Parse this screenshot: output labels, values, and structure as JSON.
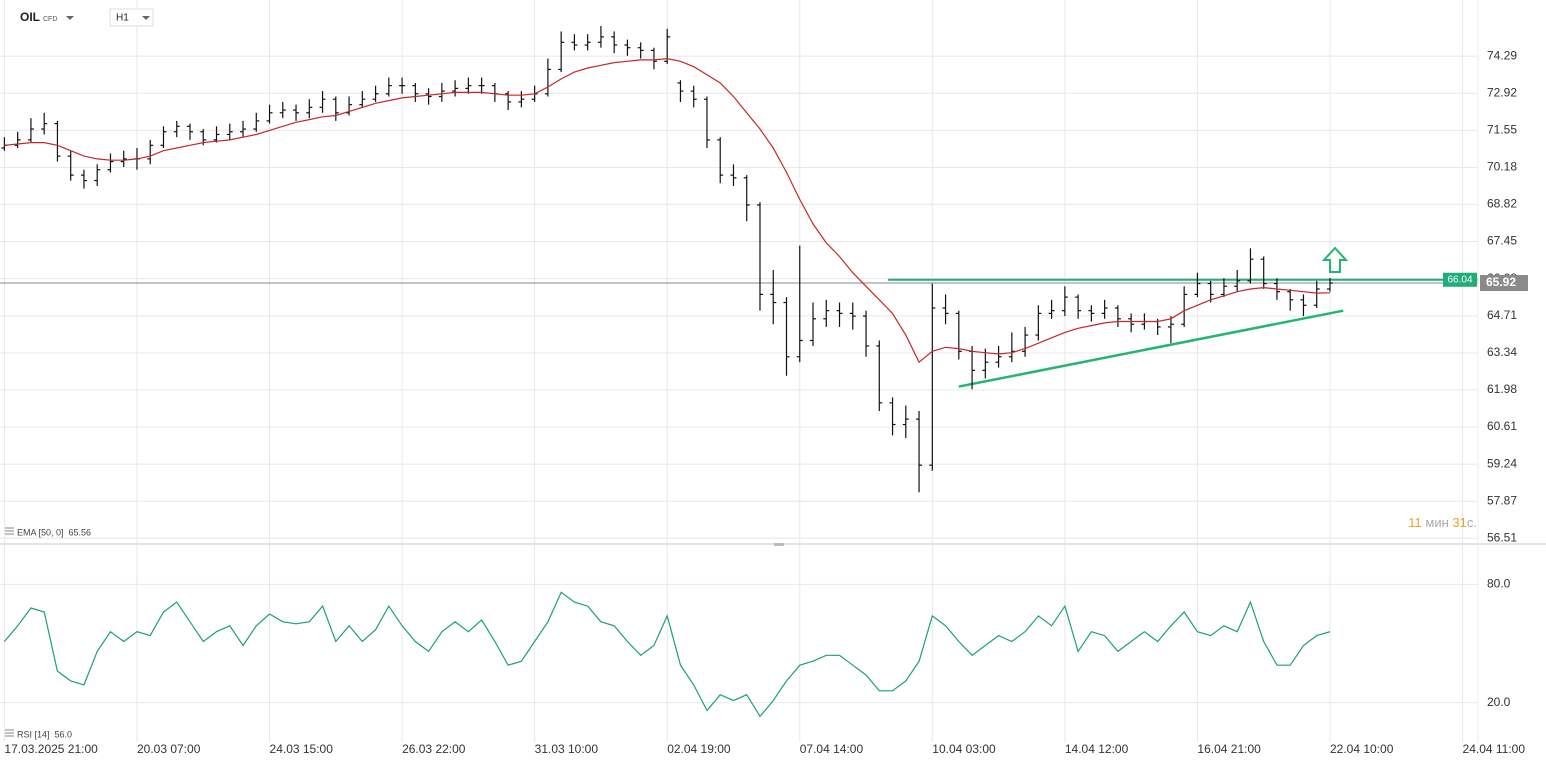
{
  "header": {
    "symbol": "OIL",
    "symbol_type": "CFD",
    "timeframe": "H1"
  },
  "countdown": {
    "minutes": "11",
    "minutes_unit": "мин",
    "seconds": "31",
    "seconds_unit": "с."
  },
  "chart_data": [
    {
      "type": "ohlc",
      "color": "#111111",
      "xlim": [
        -2,
        667
      ],
      "ylim": [
        56.33,
        76.36
      ],
      "yticks": [
        56.51,
        57.87,
        59.24,
        60.61,
        61.98,
        63.34,
        64.71,
        66.08,
        67.45,
        68.82,
        70.18,
        71.55,
        72.92,
        74.29
      ],
      "grid": true,
      "x": [
        0,
        6,
        12,
        18,
        24,
        30,
        36,
        42,
        48,
        54,
        60,
        66,
        72,
        78,
        84,
        90,
        96,
        102,
        108,
        114,
        120,
        126,
        132,
        138,
        144,
        150,
        156,
        162,
        168,
        174,
        180,
        186,
        192,
        198,
        204,
        210,
        216,
        222,
        228,
        234,
        240,
        246,
        252,
        258,
        264,
        270,
        276,
        282,
        288,
        294,
        300,
        306,
        312,
        318,
        324,
        330,
        336,
        342,
        348,
        354,
        360,
        366,
        372,
        378,
        384,
        390,
        396,
        402,
        408,
        414,
        420,
        426,
        432,
        438,
        444,
        450,
        456,
        462,
        468,
        474,
        480,
        486,
        492,
        498,
        504,
        510,
        516,
        522,
        528,
        534,
        540,
        546,
        552,
        558,
        564,
        570,
        576,
        582,
        588,
        594,
        600
      ],
      "open": [
        70.9,
        71.0,
        71.2,
        71.6,
        71.8,
        70.6,
        69.9,
        69.7,
        70.1,
        70.4,
        70.5,
        70.5,
        71.0,
        71.5,
        71.7,
        71.5,
        71.2,
        71.4,
        71.5,
        71.6,
        71.9,
        72.2,
        72.3,
        72.2,
        72.4,
        72.7,
        72.2,
        72.5,
        72.7,
        72.9,
        73.2,
        73.2,
        72.9,
        72.8,
        73.0,
        73.1,
        73.2,
        73.2,
        72.9,
        72.6,
        72.7,
        72.9,
        73.8,
        74.8,
        74.7,
        74.8,
        75.0,
        74.7,
        74.6,
        74.5,
        74.1,
        73.3,
        73.0,
        72.7,
        71.2,
        69.9,
        69.8,
        68.8,
        65.5,
        65.2,
        63.2,
        63.8,
        64.6,
        64.9,
        64.8,
        64.7,
        63.6,
        61.5,
        60.7,
        60.9,
        59.2,
        65.0,
        64.8,
        63.4,
        62.7,
        63.0,
        63.2,
        63.4,
        64.0,
        64.8,
        64.9,
        65.4,
        64.9,
        64.8,
        65.0,
        64.6,
        64.4,
        64.5,
        64.3,
        64.4,
        65.5,
        65.9,
        65.5,
        65.8,
        66.0,
        66.8,
        65.9,
        65.6,
        65.3,
        65.1,
        65.7
      ],
      "high": [
        71.3,
        71.5,
        72.0,
        72.2,
        71.9,
        70.8,
        70.1,
        70.3,
        70.7,
        70.8,
        70.9,
        71.2,
        71.7,
        71.9,
        71.8,
        71.6,
        71.7,
        71.8,
        71.9,
        72.2,
        72.5,
        72.6,
        72.5,
        72.7,
        73.0,
        72.8,
        72.8,
        73.0,
        73.2,
        73.5,
        73.5,
        73.3,
        73.1,
        73.3,
        73.4,
        73.5,
        73.5,
        73.3,
        73.0,
        73.0,
        73.2,
        74.2,
        75.2,
        75.1,
        75.1,
        75.4,
        75.2,
        74.9,
        74.8,
        74.6,
        75.3,
        73.4,
        73.2,
        72.8,
        71.3,
        70.3,
        69.9,
        68.9,
        66.4,
        65.4,
        67.3,
        65.2,
        65.3,
        65.2,
        65.2,
        64.9,
        63.8,
        61.7,
        61.4,
        61.2,
        65.9,
        65.5,
        64.9,
        63.6,
        63.5,
        63.6,
        64.1,
        64.3,
        65.1,
        65.3,
        65.8,
        65.5,
        65.1,
        65.3,
        65.1,
        64.8,
        64.8,
        64.6,
        64.7,
        65.8,
        66.3,
        66.0,
        66.1,
        66.4,
        67.2,
        66.9,
        66.1,
        65.7,
        65.5,
        66.0,
        66.1
      ],
      "low": [
        70.8,
        70.9,
        71.1,
        71.4,
        70.4,
        69.7,
        69.4,
        69.5,
        70.0,
        70.2,
        70.1,
        70.3,
        70.9,
        71.3,
        71.2,
        71.0,
        71.1,
        71.2,
        71.3,
        71.5,
        71.8,
        72.0,
        71.9,
        72.0,
        72.2,
        71.9,
        72.1,
        72.4,
        72.6,
        72.8,
        72.9,
        72.6,
        72.5,
        72.6,
        72.8,
        72.9,
        72.9,
        72.6,
        72.3,
        72.4,
        72.6,
        72.8,
        73.7,
        74.5,
        74.5,
        74.6,
        74.4,
        74.3,
        74.2,
        73.8,
        74.0,
        72.6,
        72.4,
        70.9,
        69.6,
        69.5,
        68.2,
        64.9,
        64.4,
        62.5,
        63.0,
        63.6,
        64.3,
        64.3,
        64.2,
        63.2,
        61.2,
        60.3,
        60.2,
        58.2,
        59.0,
        64.4,
        63.1,
        62.0,
        62.4,
        62.8,
        63.0,
        63.2,
        63.8,
        64.6,
        64.7,
        64.6,
        64.5,
        64.6,
        64.3,
        64.1,
        64.2,
        64.0,
        63.7,
        64.3,
        65.4,
        65.2,
        65.4,
        65.6,
        65.9,
        65.7,
        65.3,
        64.9,
        64.7,
        65.0,
        65.6
      ],
      "close": [
        71.0,
        71.2,
        71.6,
        71.8,
        70.6,
        69.9,
        69.7,
        70.1,
        70.4,
        70.5,
        70.5,
        71.0,
        71.5,
        71.7,
        71.5,
        71.2,
        71.4,
        71.5,
        71.6,
        71.9,
        72.2,
        72.3,
        72.2,
        72.4,
        72.7,
        72.2,
        72.5,
        72.7,
        72.9,
        73.2,
        73.2,
        72.9,
        72.8,
        73.0,
        73.1,
        73.2,
        73.2,
        72.9,
        72.6,
        72.7,
        72.9,
        73.8,
        74.8,
        74.7,
        74.8,
        75.0,
        74.7,
        74.6,
        74.5,
        74.1,
        75.0,
        73.0,
        72.7,
        71.2,
        69.9,
        69.8,
        68.8,
        65.5,
        65.2,
        63.2,
        63.8,
        64.6,
        64.9,
        64.8,
        64.7,
        63.6,
        61.5,
        60.7,
        60.9,
        59.2,
        65.0,
        64.8,
        63.4,
        62.7,
        63.0,
        63.2,
        63.4,
        64.0,
        64.8,
        64.9,
        65.4,
        64.9,
        64.8,
        65.0,
        64.6,
        64.4,
        64.5,
        64.3,
        64.4,
        65.5,
        65.9,
        65.5,
        65.8,
        66.0,
        66.8,
        65.9,
        65.6,
        65.3,
        65.1,
        65.7,
        65.92
      ],
      "series": [
        {
          "name": "EMA [50, 0]",
          "color": "#c62828",
          "legend_value": 65.56,
          "values": [
            71.0,
            71.05,
            71.1,
            71.1,
            71.0,
            70.8,
            70.6,
            70.5,
            70.45,
            70.45,
            70.5,
            70.6,
            70.8,
            70.9,
            71.0,
            71.1,
            71.15,
            71.2,
            71.3,
            71.4,
            71.55,
            71.7,
            71.85,
            71.95,
            72.05,
            72.1,
            72.25,
            72.4,
            72.55,
            72.65,
            72.75,
            72.8,
            72.85,
            72.9,
            72.95,
            72.95,
            72.95,
            72.9,
            72.85,
            72.85,
            72.9,
            73.15,
            73.45,
            73.7,
            73.85,
            73.95,
            74.05,
            74.1,
            74.15,
            74.15,
            74.2,
            74.1,
            73.9,
            73.6,
            73.3,
            72.8,
            72.2,
            71.6,
            70.9,
            70.0,
            69.0,
            68.1,
            67.4,
            66.9,
            66.3,
            65.8,
            65.3,
            64.8,
            64.0,
            63.0,
            63.4,
            63.55,
            63.5,
            63.4,
            63.35,
            63.3,
            63.35,
            63.5,
            63.7,
            63.9,
            64.1,
            64.25,
            64.35,
            64.45,
            64.5,
            64.5,
            64.5,
            64.5,
            64.6,
            64.9,
            65.1,
            65.3,
            65.45,
            65.6,
            65.7,
            65.75,
            65.7,
            65.65,
            65.6,
            65.55,
            65.56
          ]
        }
      ],
      "current_price": 65.92,
      "levels": [
        {
          "value": 66.04,
          "from_x": 400,
          "color": "#1fae78"
        }
      ],
      "trendline": {
        "x": [
          432,
          606
        ],
        "y": [
          62.1,
          64.9
        ],
        "color": "#22b573"
      }
    },
    {
      "type": "line",
      "xlim": [
        -2,
        667
      ],
      "ylim": [
        0,
        100
      ],
      "yticks": [
        {
          "value": 20,
          "label": "20.0"
        },
        {
          "value": 80,
          "label": "80.0"
        }
      ],
      "xticks": [
        {
          "value": 0,
          "label": "17.03.2025  21:00"
        },
        {
          "value": 60,
          "label": "20.03  07:00"
        },
        {
          "value": 120,
          "label": "24.03  15:00"
        },
        {
          "value": 180,
          "label": "26.03  22:00"
        },
        {
          "value": 240,
          "label": "31.03  10:00"
        },
        {
          "value": 300,
          "label": "02.04  19:00"
        },
        {
          "value": 360,
          "label": "07.04  14:00"
        },
        {
          "value": 420,
          "label": "10.04  03:00"
        },
        {
          "value": 480,
          "label": "14.04  12:00"
        },
        {
          "value": 540,
          "label": "16.04  21:00"
        },
        {
          "value": 600,
          "label": "22.04  10:00"
        },
        {
          "value": 660,
          "label": "24.04  11:00"
        }
      ],
      "grid": true,
      "x": [
        0,
        6,
        12,
        18,
        24,
        30,
        36,
        42,
        48,
        54,
        60,
        66,
        72,
        78,
        84,
        90,
        96,
        102,
        108,
        114,
        120,
        126,
        132,
        138,
        144,
        150,
        156,
        162,
        168,
        174,
        180,
        186,
        192,
        198,
        204,
        210,
        216,
        222,
        228,
        234,
        240,
        246,
        252,
        258,
        264,
        270,
        276,
        282,
        288,
        294,
        300,
        306,
        312,
        318,
        324,
        330,
        336,
        342,
        348,
        354,
        360,
        366,
        372,
        378,
        384,
        390,
        396,
        402,
        408,
        414,
        420,
        426,
        432,
        438,
        444,
        450,
        456,
        462,
        468,
        474,
        480,
        486,
        492,
        498,
        504,
        510,
        516,
        522,
        528,
        534,
        540,
        546,
        552,
        558,
        564,
        570,
        576,
        582,
        588,
        594,
        600
      ],
      "series": [
        {
          "name": "RSI [14]",
          "color": "#1aa36b",
          "legend_value": {
            "value": 56,
            "label": "56.0"
          },
          "values": [
            51,
            59,
            68,
            66,
            36,
            31,
            29,
            46,
            56,
            51,
            56,
            54,
            66,
            71,
            61,
            51,
            56,
            59,
            49,
            59,
            65,
            61,
            60,
            61,
            69,
            51,
            59,
            51,
            57,
            69,
            59,
            51,
            46,
            56,
            61,
            56,
            62,
            51,
            39,
            41,
            51,
            61,
            76,
            71,
            69,
            61,
            59,
            51,
            44,
            49,
            64,
            39,
            29,
            16,
            24,
            21,
            24,
            13,
            21,
            31,
            39,
            41,
            44,
            44,
            39,
            34,
            26,
            26,
            31,
            41,
            64,
            59,
            51,
            44,
            49,
            54,
            51,
            56,
            64,
            59,
            69,
            46,
            56,
            54,
            46,
            51,
            56,
            51,
            59,
            66,
            56,
            54,
            59,
            56,
            71,
            51,
            39,
            39,
            49,
            54,
            56
          ]
        }
      ]
    }
  ]
}
